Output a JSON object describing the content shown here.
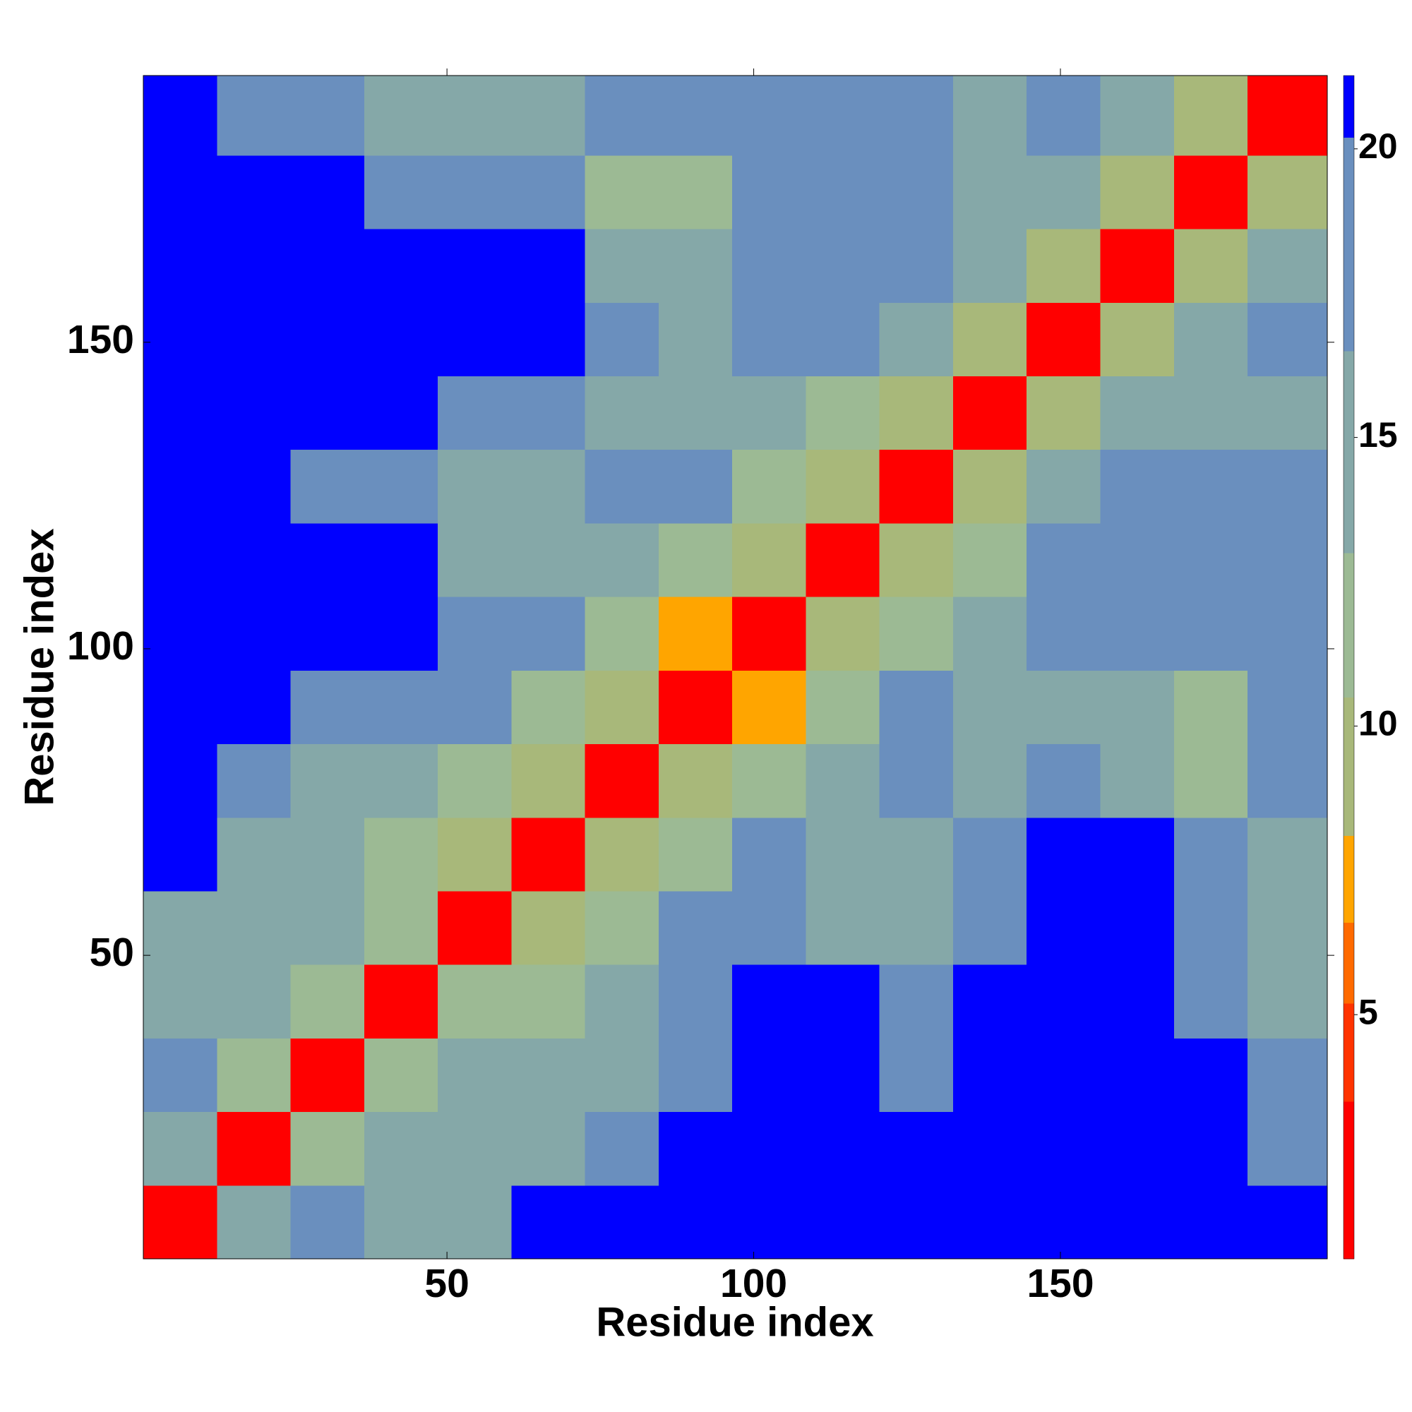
{
  "chart_data": {
    "type": "heatmap",
    "xlabel": "Residue index",
    "ylabel": "Residue index",
    "x_edges": [
      0.5,
      12.5,
      24.5,
      36.5,
      48.5,
      60.5,
      72.5,
      84.5,
      96.5,
      108.5,
      120.5,
      132.5,
      144.5,
      156.5,
      168.5,
      180.5,
      193.5
    ],
    "y_edges": [
      0.5,
      12.5,
      24.5,
      36.5,
      48.5,
      60.5,
      72.5,
      84.5,
      96.5,
      108.5,
      120.5,
      132.5,
      144.5,
      156.5,
      168.5,
      180.5,
      193.5
    ],
    "z": [
      [
        3.5,
        14,
        19,
        15,
        16,
        20.5,
        21,
        21,
        21,
        21,
        21,
        21,
        21,
        21,
        21,
        20.5
      ],
      [
        14,
        3.5,
        12,
        15,
        14,
        16,
        18,
        21,
        21,
        21,
        20.5,
        21,
        21,
        21,
        21,
        19
      ],
      [
        19,
        12,
        3.5,
        12,
        14,
        15,
        16,
        20,
        21,
        21,
        19,
        21,
        21,
        21,
        20.5,
        18
      ],
      [
        15,
        15,
        12,
        3.5,
        11,
        13,
        15,
        19,
        21,
        20.5,
        18,
        21,
        21,
        21,
        20,
        16
      ],
      [
        16,
        14,
        14,
        11,
        3.5,
        10,
        13,
        17,
        19,
        16,
        14,
        19,
        21,
        21,
        19,
        16
      ],
      [
        20.5,
        16,
        15,
        13,
        10,
        3.5,
        10,
        13,
        17,
        14,
        14,
        18,
        20.5,
        21,
        18,
        16
      ],
      [
        21,
        18,
        16,
        15,
        13,
        10,
        3.5,
        10,
        11,
        14,
        17,
        16,
        17,
        16,
        13,
        18
      ],
      [
        21,
        21,
        20,
        19,
        17,
        13,
        10,
        3.5,
        8,
        13,
        18,
        16,
        15,
        14,
        11,
        19
      ],
      [
        21,
        21,
        21,
        21,
        19,
        17,
        11,
        8,
        3.5,
        9,
        13,
        15,
        17,
        19,
        17,
        18
      ],
      [
        21,
        21,
        21,
        20.5,
        16,
        14,
        14,
        13,
        9,
        3.5,
        9,
        12,
        17,
        20,
        19,
        20
      ],
      [
        21,
        20.5,
        19,
        18,
        14,
        14,
        17,
        18,
        13,
        9,
        3.5,
        10,
        14,
        19,
        19,
        17
      ],
      [
        21,
        21,
        21,
        21,
        19,
        18,
        16,
        16,
        15,
        12,
        10,
        3.5,
        10,
        14,
        16,
        14
      ],
      [
        21,
        21,
        21,
        21,
        21,
        20.5,
        17,
        15,
        17,
        17,
        14,
        10,
        3.5,
        10,
        15,
        17
      ],
      [
        21,
        21,
        21,
        21,
        21,
        21,
        16,
        14,
        19,
        20,
        19,
        14,
        10,
        3.5,
        10,
        14
      ],
      [
        21,
        21,
        20.5,
        20,
        19,
        18,
        13,
        11,
        17,
        19,
        19,
        16,
        15,
        10,
        3.5,
        10
      ],
      [
        20.5,
        19,
        18,
        16,
        16,
        16,
        18,
        19,
        18,
        20,
        17,
        14,
        17,
        14,
        10,
        3.5
      ]
    ],
    "xlim": [
      0.5,
      193.5
    ],
    "ylim": [
      0.5,
      193.5
    ],
    "xticks": [
      50,
      100,
      150
    ],
    "yticks": [
      50,
      100,
      150
    ],
    "colorbar": {
      "lim": [
        0.77,
        21.27
      ],
      "ticks": [
        5,
        10,
        15,
        20
      ],
      "bands": [
        {
          "min": 0.77,
          "max": 3.5,
          "color": "#ff0000"
        },
        {
          "min": 3.5,
          "max": 5.2,
          "color": "#ff3300"
        },
        {
          "min": 5.2,
          "max": 6.6,
          "color": "#ff6a00"
        },
        {
          "min": 6.6,
          "max": 8.1,
          "color": "#ffa500"
        },
        {
          "min": 8.1,
          "max": 10.5,
          "color": "#a8b87a"
        },
        {
          "min": 10.5,
          "max": 13,
          "color": "#9cba94"
        },
        {
          "min": 13,
          "max": 16.5,
          "color": "#85a8a8"
        },
        {
          "min": 16.5,
          "max": 20.2,
          "color": "#6a8fbe"
        },
        {
          "min": 20.2,
          "max": 21.27,
          "color": "#0000ff"
        }
      ]
    }
  }
}
